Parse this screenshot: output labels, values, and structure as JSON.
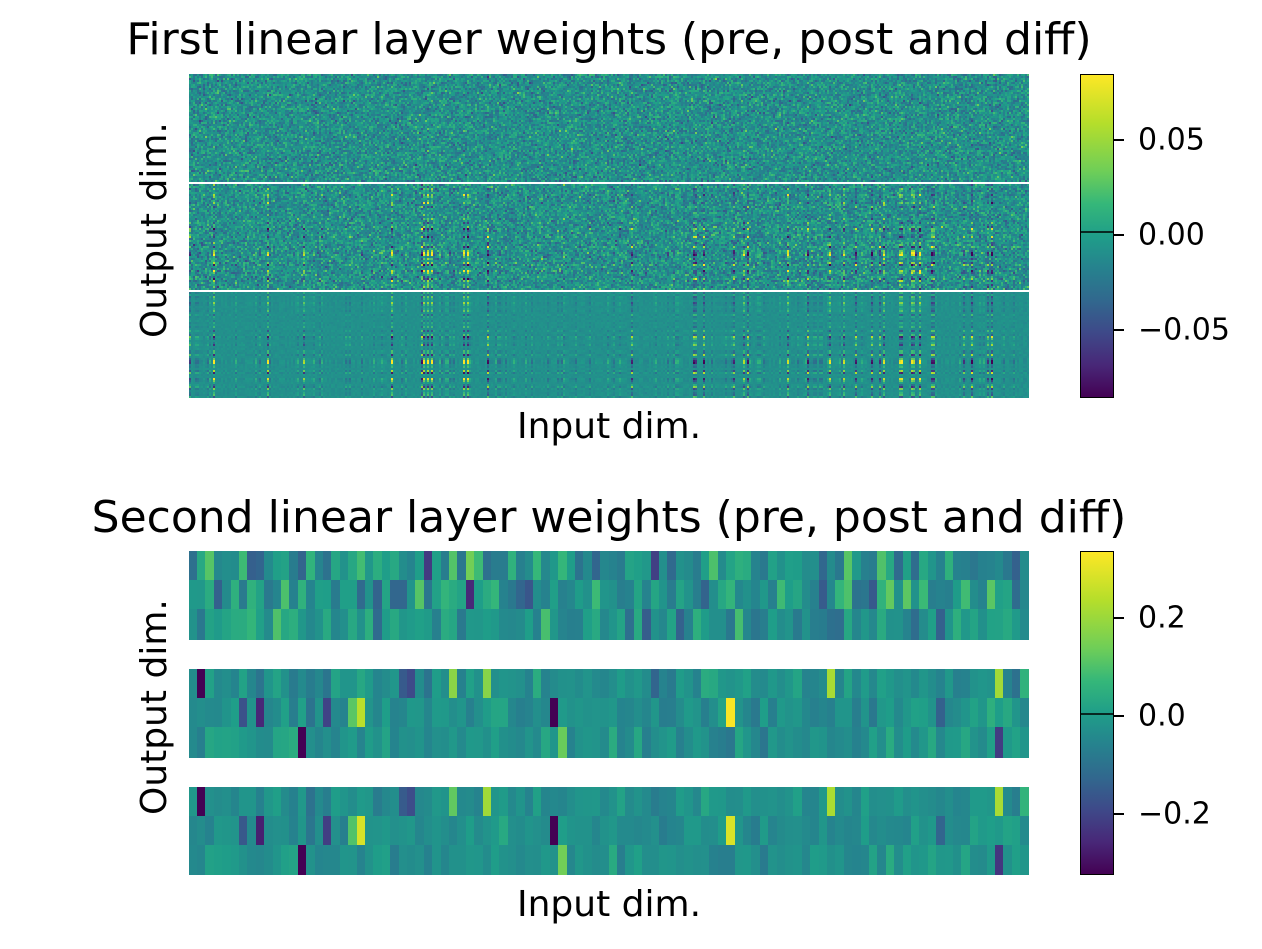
{
  "chart_data": [
    {
      "type": "heatmap",
      "title": "First linear layer weights (pre, post and diff)",
      "xlabel": "Input dim.",
      "ylabel": "Output dim.",
      "panels": [
        "pre",
        "post",
        "diff"
      ],
      "colormap": "viridis",
      "clim": [
        -0.085,
        0.085
      ],
      "colorbar_ticks": [
        0.05,
        0.0,
        -0.05
      ],
      "colorbar_tick_labels": [
        "0.05",
        "0.00",
        "−0.05"
      ],
      "colorbar_zero_marker": 0.0
    },
    {
      "type": "heatmap",
      "title": "Second linear layer weights (pre, post and diff)",
      "xlabel": "Input dim.",
      "ylabel": "Output dim.",
      "panels": [
        "pre",
        "post",
        "diff"
      ],
      "colormap": "viridis",
      "clim": [
        -0.33,
        0.33
      ],
      "colorbar_ticks": [
        0.2,
        0.0,
        -0.2
      ],
      "colorbar_tick_labels": [
        "0.2",
        "0.0",
        "−0.2"
      ],
      "colorbar_zero_marker": 0.0
    }
  ]
}
